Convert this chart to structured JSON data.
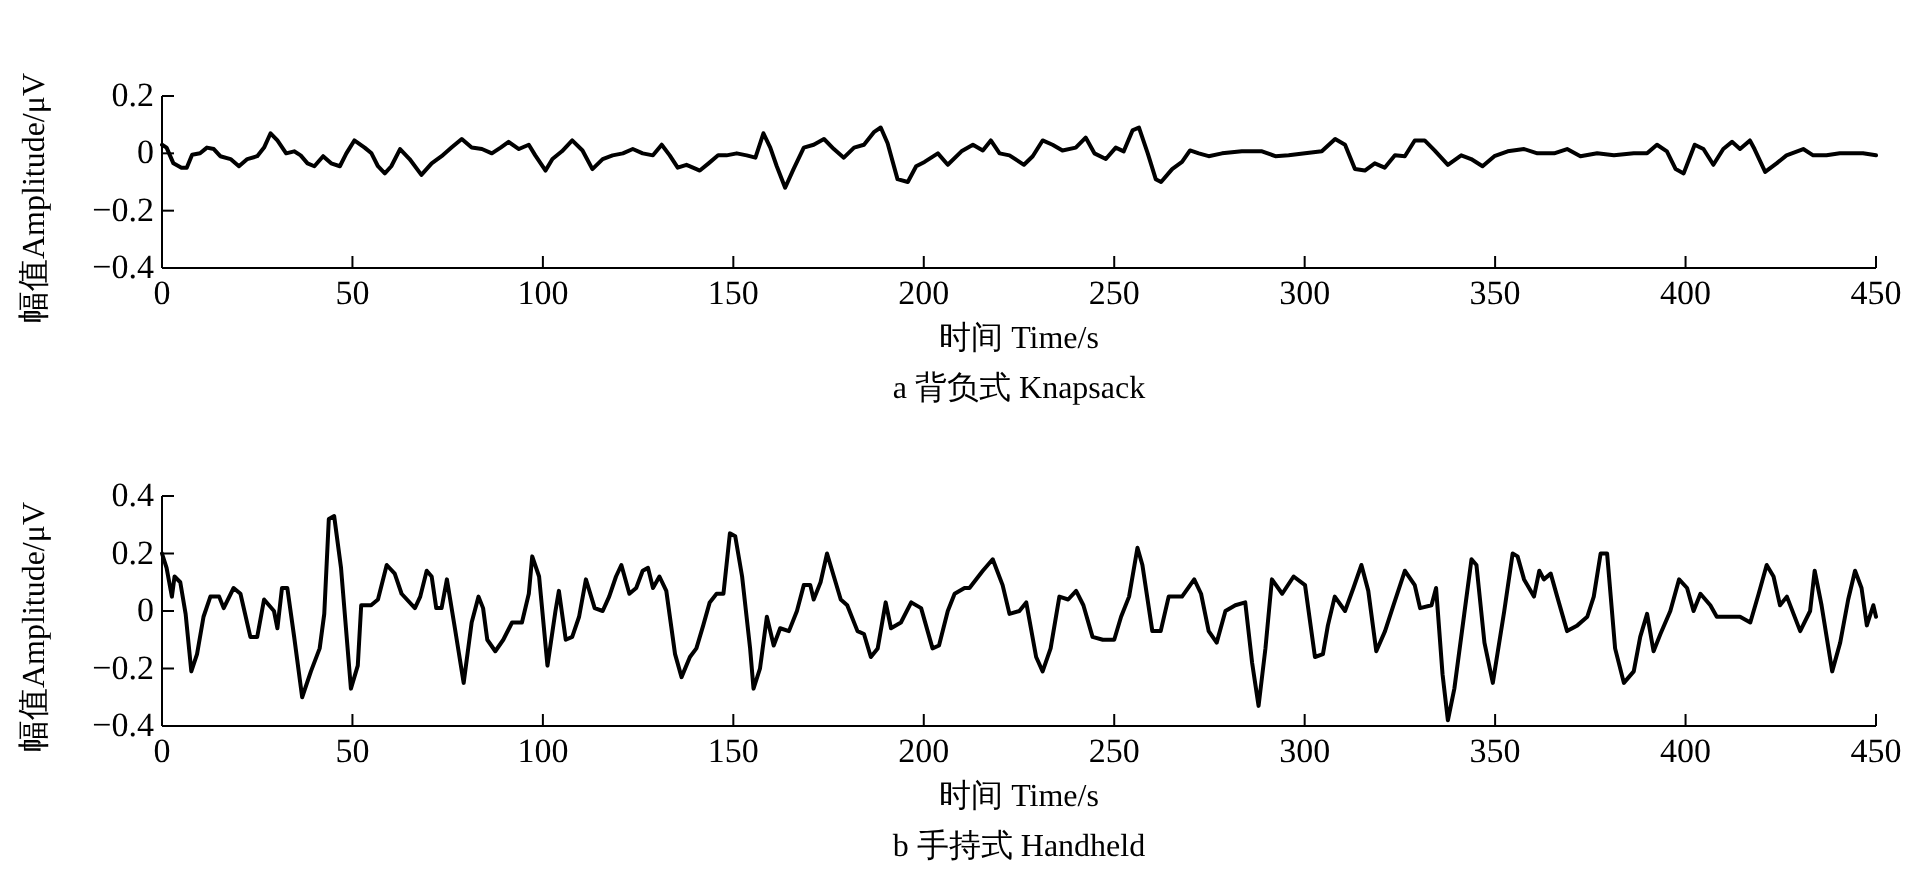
{
  "chart_data": [
    {
      "type": "line",
      "title": "a 背负式 Knapsack",
      "xlabel": "时间 Time/s",
      "ylabel": "幅值Amplitude/μV",
      "color": "#000000",
      "xlim": [
        0,
        450
      ],
      "xticks": [
        0,
        50,
        100,
        150,
        200,
        250,
        300,
        350,
        400,
        450
      ],
      "ylim": [
        -0.4,
        0.2
      ],
      "yticks": [
        -0.4,
        -0.2,
        0,
        0.2
      ],
      "x": [
        0,
        1.2,
        3,
        5.1,
        6.5,
        7.9,
        10,
        11.8,
        13.6,
        15.3,
        18,
        20.2,
        22.4,
        25,
        26.8,
        28.5,
        30.3,
        32.6,
        34.7,
        36.4,
        38.2,
        40,
        42.3,
        44.4,
        46.7,
        48.4,
        50.5,
        53.2,
        55,
        56.7,
        58.5,
        60.2,
        62.5,
        65,
        68.1,
        70.8,
        73.4,
        76,
        78.7,
        81.3,
        84,
        86.6,
        88.9,
        91,
        93.7,
        96.3,
        98,
        100.7,
        102.5,
        105,
        107.7,
        110.4,
        113,
        115.7,
        118.3,
        121,
        123.6,
        126.2,
        128.9,
        131.2,
        133.3,
        135.4,
        137.7,
        139.4,
        141.2,
        143.5,
        146,
        148.2,
        150.9,
        153.5,
        155.8,
        157.9,
        159.7,
        161.4,
        163.6,
        165.8,
        168.5,
        171.1,
        173.8,
        176.4,
        179,
        181.7,
        184.3,
        187,
        188.7,
        190.5,
        193.1,
        195.8,
        198,
        200.2,
        203.7,
        206.3,
        209.9,
        212.9,
        215.5,
        217.6,
        219.9,
        222.5,
        226.3,
        228.6,
        231.2,
        233.8,
        236.4,
        239.9,
        242.5,
        244.8,
        247.8,
        250.4,
        252.5,
        254.8,
        256.5,
        258.8,
        260.9,
        262.3,
        265.2,
        267.8,
        269.9,
        272.2,
        274.8,
        278.3,
        283.5,
        288.8,
        292.3,
        295.8,
        300.1,
        304.5,
        308,
        310.6,
        313.2,
        315.8,
        318.4,
        321,
        323.7,
        326.3,
        328.9,
        331.5,
        334.1,
        337.6,
        341.1,
        343.7,
        346.7,
        349.8,
        353.3,
        357.6,
        361.1,
        365.5,
        368.9,
        372.4,
        376.8,
        381.2,
        386.4,
        389.9,
        392.5,
        395.1,
        397.4,
        399.5,
        402.4,
        404.7,
        407.3,
        409.9,
        412.2,
        414.3,
        416.9,
        418.1,
        420.9,
        423.9,
        426.5,
        430.9,
        433.5,
        437,
        440.5,
        444,
        446.6,
        450
      ],
      "values": [
        0.03,
        0.02,
        -0.035,
        -0.05,
        -0.05,
        -0.005,
        0,
        0.02,
        0.015,
        -0.01,
        -0.02,
        -0.045,
        -0.02,
        -0.01,
        0.02,
        0.07,
        0.045,
        0,
        0.007,
        -0.007,
        -0.035,
        -0.045,
        -0.01,
        -0.035,
        -0.045,
        0,
        0.045,
        0.02,
        0,
        -0.045,
        -0.07,
        -0.045,
        0.015,
        -0.02,
        -0.075,
        -0.035,
        -0.01,
        0.02,
        0.05,
        0.02,
        0.015,
        0,
        0.02,
        0.04,
        0.015,
        0.03,
        -0.007,
        -0.06,
        -0.02,
        0.007,
        0.045,
        0.01,
        -0.055,
        -0.02,
        -0.007,
        0,
        0.015,
        0,
        -0.007,
        0.03,
        -0.007,
        -0.05,
        -0.04,
        -0.05,
        -0.06,
        -0.035,
        -0.007,
        -0.007,
        0,
        -0.007,
        -0.015,
        0.07,
        0.02,
        -0.045,
        -0.12,
        -0.055,
        0.02,
        0.03,
        0.05,
        0.015,
        -0.015,
        0.02,
        0.03,
        0.075,
        0.09,
        0.035,
        -0.09,
        -0.1,
        -0.045,
        -0.03,
        0,
        -0.04,
        0.007,
        0.03,
        0.01,
        0.045,
        0,
        -0.007,
        -0.04,
        -0.01,
        0.045,
        0.03,
        0.01,
        0.02,
        0.055,
        0,
        -0.02,
        0.02,
        0.007,
        0.08,
        0.09,
        0,
        -0.09,
        -0.1,
        -0.055,
        -0.03,
        0.01,
        0,
        -0.01,
        0,
        0.007,
        0.007,
        -0.01,
        -0.007,
        0,
        0.007,
        0.05,
        0.03,
        -0.055,
        -0.06,
        -0.035,
        -0.05,
        -0.007,
        -0.01,
        0.045,
        0.045,
        0.01,
        -0.04,
        -0.007,
        -0.02,
        -0.045,
        -0.01,
        0.007,
        0.015,
        0,
        0,
        0.015,
        -0.01,
        0,
        -0.007,
        0,
        0,
        0.03,
        0.007,
        -0.055,
        -0.07,
        0.03,
        0.015,
        -0.04,
        0.015,
        0.04,
        0.015,
        0.045,
        0.015,
        -0.065,
        -0.035,
        -0.007,
        0.015,
        -0.007,
        -0.007,
        0,
        0,
        0,
        -0.007
      ]
    },
    {
      "type": "line",
      "title": "b 手持式 Handheld",
      "xlabel": "时间 Time/s",
      "ylabel": "幅值Amplitude/μV",
      "color": "#000000",
      "xlim": [
        0,
        450
      ],
      "xticks": [
        0,
        50,
        100,
        150,
        200,
        250,
        300,
        350,
        400,
        450
      ],
      "ylim": [
        -0.4,
        0.4
      ],
      "yticks": [
        -0.4,
        -0.2,
        0,
        0.2,
        0.4
      ],
      "x": [
        0,
        1.2,
        2.6,
        3.3,
        4.8,
        6.2,
        7.7,
        9.2,
        10.9,
        12.7,
        15,
        16.2,
        18.8,
        20.6,
        23.2,
        25,
        26.8,
        29.4,
        30.3,
        31.5,
        32.9,
        34.7,
        36.8,
        39.1,
        41.4,
        42.6,
        43.8,
        45.2,
        47,
        49.6,
        51.4,
        52.3,
        54.9,
        56.7,
        59,
        61.1,
        62.9,
        66.4,
        67.8,
        69.5,
        70.8,
        72,
        73.4,
        74.8,
        76.9,
        79.2,
        81.3,
        83.1,
        84.3,
        85.4,
        87.5,
        89.6,
        91.9,
        94.5,
        96.3,
        97.2,
        99,
        101.2,
        103.3,
        104.2,
        106,
        107.7,
        109.5,
        111.3,
        113.6,
        115.7,
        117.4,
        119.2,
        120.6,
        122.7,
        124.5,
        126.2,
        127.6,
        128.9,
        130.6,
        132.4,
        134.7,
        136.4,
        138.6,
        140.3,
        142.1,
        143.8,
        145.6,
        147.4,
        149.1,
        150.5,
        152.3,
        154.4,
        155.3,
        157,
        158.8,
        160.6,
        162.3,
        164.6,
        166.7,
        168.5,
        170.2,
        171.1,
        172.9,
        174.6,
        176.4,
        178.2,
        179.9,
        182.6,
        184.3,
        186.1,
        187.9,
        190,
        191.4,
        194,
        196.7,
        199.3,
        202.3,
        204,
        206.3,
        208.1,
        210.7,
        212,
        215.5,
        218.1,
        220.7,
        222.5,
        225.1,
        226.9,
        229.5,
        231.2,
        233.3,
        235.6,
        237.9,
        240,
        241.9,
        244.3,
        247,
        250,
        251.8,
        253.9,
        256.1,
        257.4,
        260,
        262.2,
        264.3,
        267.8,
        271,
        272.8,
        274.8,
        276.9,
        279.2,
        281.8,
        284.4,
        286.2,
        287.9,
        289.7,
        291.4,
        294.1,
        297.1,
        300.1,
        302.7,
        304.8,
        306.1,
        307.9,
        310.6,
        312.8,
        314.9,
        316.7,
        318.8,
        321.1,
        323.3,
        326.3,
        328.9,
        330.3,
        333.3,
        334.5,
        336.2,
        337.6,
        339.3,
        341.9,
        343.8,
        345.1,
        347.2,
        349.4,
        352.4,
        354.6,
        355.9,
        357.6,
        360.2,
        361.6,
        362.8,
        364.6,
        366.3,
        368.9,
        371.6,
        374.2,
        375.9,
        377.7,
        379.4,
        381.5,
        383.8,
        386.4,
        388.1,
        389.9,
        391.6,
        393.4,
        396,
        398.3,
        400.4,
        402.1,
        403.9,
        406.5,
        408.2,
        411.7,
        414.3,
        417,
        419.2,
        421.3,
        423.1,
        424.8,
        426.6,
        430.1,
        432.7,
        433.9,
        435.7,
        438.5,
        440.6,
        442.7,
        444.5,
        446.2,
        447.6,
        449.3,
        450
      ],
      "values": [
        0.2,
        0.15,
        0.05,
        0.12,
        0.1,
        -0.01,
        -0.21,
        -0.15,
        -0.02,
        0.05,
        0.05,
        0.01,
        0.08,
        0.06,
        -0.09,
        -0.09,
        0.04,
        0,
        -0.06,
        0.08,
        0.08,
        -0.09,
        -0.3,
        -0.21,
        -0.13,
        -0.01,
        0.32,
        0.33,
        0.15,
        -0.27,
        -0.19,
        0.02,
        0.02,
        0.04,
        0.16,
        0.13,
        0.06,
        0.01,
        0.05,
        0.14,
        0.12,
        0.01,
        0.01,
        0.11,
        -0.06,
        -0.25,
        -0.04,
        0.05,
        0.01,
        -0.1,
        -0.14,
        -0.1,
        -0.04,
        -0.04,
        0.06,
        0.19,
        0.12,
        -0.19,
        0,
        0.07,
        -0.1,
        -0.09,
        -0.02,
        0.11,
        0.01,
        0,
        0.05,
        0.12,
        0.16,
        0.06,
        0.08,
        0.14,
        0.15,
        0.08,
        0.12,
        0.07,
        -0.15,
        -0.23,
        -0.16,
        -0.13,
        -0.05,
        0.03,
        0.06,
        0.06,
        0.27,
        0.26,
        0.12,
        -0.13,
        -0.27,
        -0.2,
        -0.02,
        -0.12,
        -0.06,
        -0.07,
        0,
        0.09,
        0.09,
        0.04,
        0.1,
        0.2,
        0.12,
        0.04,
        0.02,
        -0.07,
        -0.08,
        -0.16,
        -0.13,
        0.03,
        -0.06,
        -0.04,
        0.03,
        0.01,
        -0.13,
        -0.12,
        0,
        0.06,
        0.08,
        0.08,
        0.14,
        0.18,
        0.09,
        -0.01,
        0,
        0.03,
        -0.16,
        -0.21,
        -0.13,
        0.05,
        0.04,
        0.07,
        0.02,
        -0.09,
        -0.1,
        -0.1,
        -0.02,
        0.05,
        0.22,
        0.16,
        -0.07,
        -0.07,
        0.05,
        0.05,
        0.11,
        0.06,
        -0.07,
        -0.11,
        0,
        0.02,
        0.03,
        -0.18,
        -0.33,
        -0.13,
        0.11,
        0.06,
        0.12,
        0.09,
        -0.16,
        -0.15,
        -0.05,
        0.05,
        0,
        0.08,
        0.16,
        0.07,
        -0.14,
        -0.07,
        0.02,
        0.14,
        0.09,
        0.01,
        0.02,
        0.08,
        -0.22,
        -0.38,
        -0.27,
        -0.01,
        0.18,
        0.16,
        -0.11,
        -0.25,
        0,
        0.2,
        0.19,
        0.11,
        0.05,
        0.14,
        0.11,
        0.13,
        0.05,
        -0.07,
        -0.05,
        -0.02,
        0.05,
        0.2,
        0.2,
        -0.13,
        -0.25,
        -0.21,
        -0.09,
        -0.01,
        -0.14,
        -0.08,
        0,
        0.11,
        0.08,
        0,
        0.06,
        0.02,
        -0.02,
        -0.02,
        -0.02,
        -0.04,
        0.06,
        0.16,
        0.12,
        0.02,
        0.05,
        -0.07,
        0,
        0.14,
        0.02,
        -0.21,
        -0.11,
        0.04,
        0.14,
        0.08,
        -0.05,
        0.02,
        -0.02
      ]
    }
  ]
}
